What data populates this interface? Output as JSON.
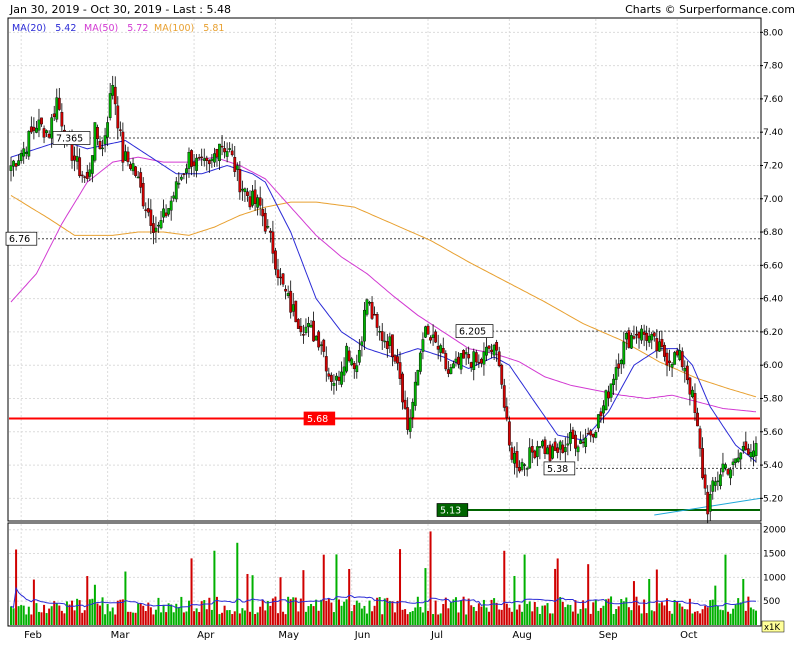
{
  "header": {
    "range": "Jan 30, 2019 - Oct 30, 2019 - Last : 5.48",
    "credit": "Charts © Surperformance.com"
  },
  "legend": [
    {
      "label": "MA(20)",
      "value": "5.42",
      "color": "#2b2bd6"
    },
    {
      "label": "MA(50)",
      "value": "5.72",
      "color": "#d23ad2"
    },
    {
      "label": "MA(100)",
      "value": "5.81",
      "color": "#e8a030"
    }
  ],
  "volume_unit": "x1K",
  "chart_data": [
    {
      "type": "candlestick",
      "ylim": [
        5.1,
        8.0
      ],
      "y_ticks": [
        8.0,
        7.8,
        7.6,
        7.4,
        7.2,
        7.0,
        6.8,
        6.6,
        6.4,
        6.2,
        6.0,
        5.8,
        5.6,
        5.4,
        5.2
      ],
      "y_tick_labels": [
        "8.00",
        "7.80",
        "7.60",
        "7.40",
        "7.20",
        "7.00",
        "6.80",
        "6.60",
        "6.40",
        "6.20",
        "6.00",
        "5.80",
        "5.60",
        "5.40",
        "5.20"
      ],
      "x_labels": [
        "Feb",
        "Mar",
        "Apr",
        "May",
        "Jun",
        "Jul",
        "Aug",
        "Sep",
        "Oct"
      ],
      "x_label_index": [
        4,
        38,
        72,
        104,
        134,
        164,
        196,
        230,
        262
      ],
      "n": 294,
      "colors": {
        "up": "#00b000",
        "down": "#d00000",
        "ma20": "#2b2bd6",
        "ma50": "#d23ad2",
        "ma100": "#e8a030"
      },
      "anchors": [
        [
          0,
          7.2
        ],
        [
          5,
          7.3
        ],
        [
          10,
          7.45
        ],
        [
          15,
          7.4
        ],
        [
          18,
          7.6
        ],
        [
          22,
          7.35
        ],
        [
          26,
          7.2
        ],
        [
          30,
          7.1
        ],
        [
          33,
          7.4
        ],
        [
          36,
          7.3
        ],
        [
          40,
          7.7
        ],
        [
          44,
          7.25
        ],
        [
          48,
          7.2
        ],
        [
          52,
          7.0
        ],
        [
          56,
          6.85
        ],
        [
          58,
          6.82
        ],
        [
          62,
          6.95
        ],
        [
          66,
          7.1
        ],
        [
          70,
          7.25
        ],
        [
          74,
          7.2
        ],
        [
          78,
          7.18
        ],
        [
          82,
          7.35
        ],
        [
          86,
          7.28
        ],
        [
          90,
          7.1
        ],
        [
          94,
          7.0
        ],
        [
          98,
          6.95
        ],
        [
          100,
          6.85
        ],
        [
          103,
          6.7
        ],
        [
          106,
          6.5
        ],
        [
          110,
          6.35
        ],
        [
          114,
          6.25
        ],
        [
          118,
          6.2
        ],
        [
          122,
          6.15
        ],
        [
          125,
          5.95
        ],
        [
          128,
          5.9
        ],
        [
          132,
          6.1
        ],
        [
          136,
          6.0
        ],
        [
          140,
          6.4
        ],
        [
          144,
          6.2
        ],
        [
          148,
          6.15
        ],
        [
          152,
          6.05
        ],
        [
          156,
          5.62
        ],
        [
          159,
          5.85
        ],
        [
          162,
          6.2
        ],
        [
          165,
          6.15
        ],
        [
          168,
          6.1
        ],
        [
          172,
          5.95
        ],
        [
          176,
          6.0
        ],
        [
          180,
          6.05
        ],
        [
          184,
          6.0
        ],
        [
          188,
          6.1
        ],
        [
          192,
          6.05
        ],
        [
          194,
          5.75
        ],
        [
          196,
          5.5
        ],
        [
          200,
          5.4
        ],
        [
          204,
          5.45
        ],
        [
          208,
          5.55
        ],
        [
          212,
          5.45
        ],
        [
          216,
          5.5
        ],
        [
          220,
          5.55
        ],
        [
          224,
          5.55
        ],
        [
          228,
          5.6
        ],
        [
          232,
          5.7
        ],
        [
          234,
          5.8
        ],
        [
          238,
          6.0
        ],
        [
          242,
          6.15
        ],
        [
          246,
          6.2
        ],
        [
          250,
          6.18
        ],
        [
          254,
          6.1
        ],
        [
          258,
          6.05
        ],
        [
          262,
          6.05
        ],
        [
          265,
          6.0
        ],
        [
          268,
          5.8
        ],
        [
          270,
          5.6
        ],
        [
          272,
          5.35
        ],
        [
          274,
          5.15
        ],
        [
          276,
          5.25
        ],
        [
          280,
          5.4
        ],
        [
          284,
          5.38
        ],
        [
          288,
          5.5
        ],
        [
          291,
          5.52
        ],
        [
          293,
          5.48
        ]
      ],
      "ma20_anchors": [
        [
          0,
          7.25
        ],
        [
          10,
          7.3
        ],
        [
          20,
          7.35
        ],
        [
          30,
          7.3
        ],
        [
          45,
          7.35
        ],
        [
          55,
          7.25
        ],
        [
          65,
          7.15
        ],
        [
          75,
          7.15
        ],
        [
          85,
          7.2
        ],
        [
          95,
          7.15
        ],
        [
          100,
          7.1
        ],
        [
          110,
          6.8
        ],
        [
          120,
          6.4
        ],
        [
          130,
          6.2
        ],
        [
          140,
          6.1
        ],
        [
          150,
          6.05
        ],
        [
          160,
          6.1
        ],
        [
          170,
          6.05
        ],
        [
          180,
          5.98
        ],
        [
          190,
          6.05
        ],
        [
          196,
          6.0
        ],
        [
          205,
          5.8
        ],
        [
          215,
          5.58
        ],
        [
          225,
          5.55
        ],
        [
          235,
          5.72
        ],
        [
          245,
          6.0
        ],
        [
          255,
          6.1
        ],
        [
          262,
          6.1
        ],
        [
          268,
          6.0
        ],
        [
          275,
          5.75
        ],
        [
          285,
          5.52
        ],
        [
          293,
          5.42
        ]
      ],
      "ma50_anchors": [
        [
          0,
          6.38
        ],
        [
          10,
          6.55
        ],
        [
          20,
          6.85
        ],
        [
          30,
          7.1
        ],
        [
          40,
          7.22
        ],
        [
          50,
          7.25
        ],
        [
          60,
          7.22
        ],
        [
          70,
          7.22
        ],
        [
          80,
          7.25
        ],
        [
          90,
          7.2
        ],
        [
          100,
          7.12
        ],
        [
          110,
          6.95
        ],
        [
          120,
          6.78
        ],
        [
          130,
          6.65
        ],
        [
          140,
          6.55
        ],
        [
          150,
          6.42
        ],
        [
          160,
          6.3
        ],
        [
          170,
          6.2
        ],
        [
          180,
          6.1
        ],
        [
          190,
          6.07
        ],
        [
          200,
          6.02
        ],
        [
          210,
          5.93
        ],
        [
          220,
          5.88
        ],
        [
          230,
          5.85
        ],
        [
          240,
          5.82
        ],
        [
          250,
          5.8
        ],
        [
          260,
          5.82
        ],
        [
          270,
          5.78
        ],
        [
          280,
          5.74
        ],
        [
          293,
          5.72
        ]
      ],
      "ma100_anchors": [
        [
          0,
          7.02
        ],
        [
          15,
          6.88
        ],
        [
          25,
          6.78
        ],
        [
          40,
          6.78
        ],
        [
          50,
          6.8
        ],
        [
          60,
          6.8
        ],
        [
          70,
          6.78
        ],
        [
          80,
          6.83
        ],
        [
          90,
          6.9
        ],
        [
          100,
          6.95
        ],
        [
          110,
          6.98
        ],
        [
          120,
          6.98
        ],
        [
          135,
          6.95
        ],
        [
          150,
          6.85
        ],
        [
          165,
          6.75
        ],
        [
          180,
          6.62
        ],
        [
          195,
          6.5
        ],
        [
          210,
          6.38
        ],
        [
          225,
          6.25
        ],
        [
          240,
          6.15
        ],
        [
          255,
          6.02
        ],
        [
          270,
          5.92
        ],
        [
          282,
          5.86
        ],
        [
          293,
          5.81
        ]
      ],
      "annotations": [
        {
          "label": "7.365",
          "value": 7.365,
          "kind": "resistance"
        },
        {
          "label": "6.76",
          "value": 6.76,
          "kind": "resistance"
        },
        {
          "label": "6.205",
          "value": 6.205,
          "kind": "resistance"
        },
        {
          "label": "5.68",
          "value": 5.68,
          "kind": "red-line"
        },
        {
          "label": "5.38",
          "value": 5.38,
          "kind": "support"
        },
        {
          "label": "5.13",
          "value": 5.13,
          "kind": "green-line"
        }
      ],
      "trendline": [
        [
          253,
          5.1
        ],
        [
          294,
          5.2
        ]
      ]
    },
    {
      "type": "bar",
      "title": "volume",
      "ylim": [
        0,
        2000
      ],
      "y_ticks": [
        2000,
        1500,
        1000,
        500
      ],
      "y_tick_labels": [
        "2000",
        "1500",
        "1000",
        "500"
      ]
    }
  ]
}
